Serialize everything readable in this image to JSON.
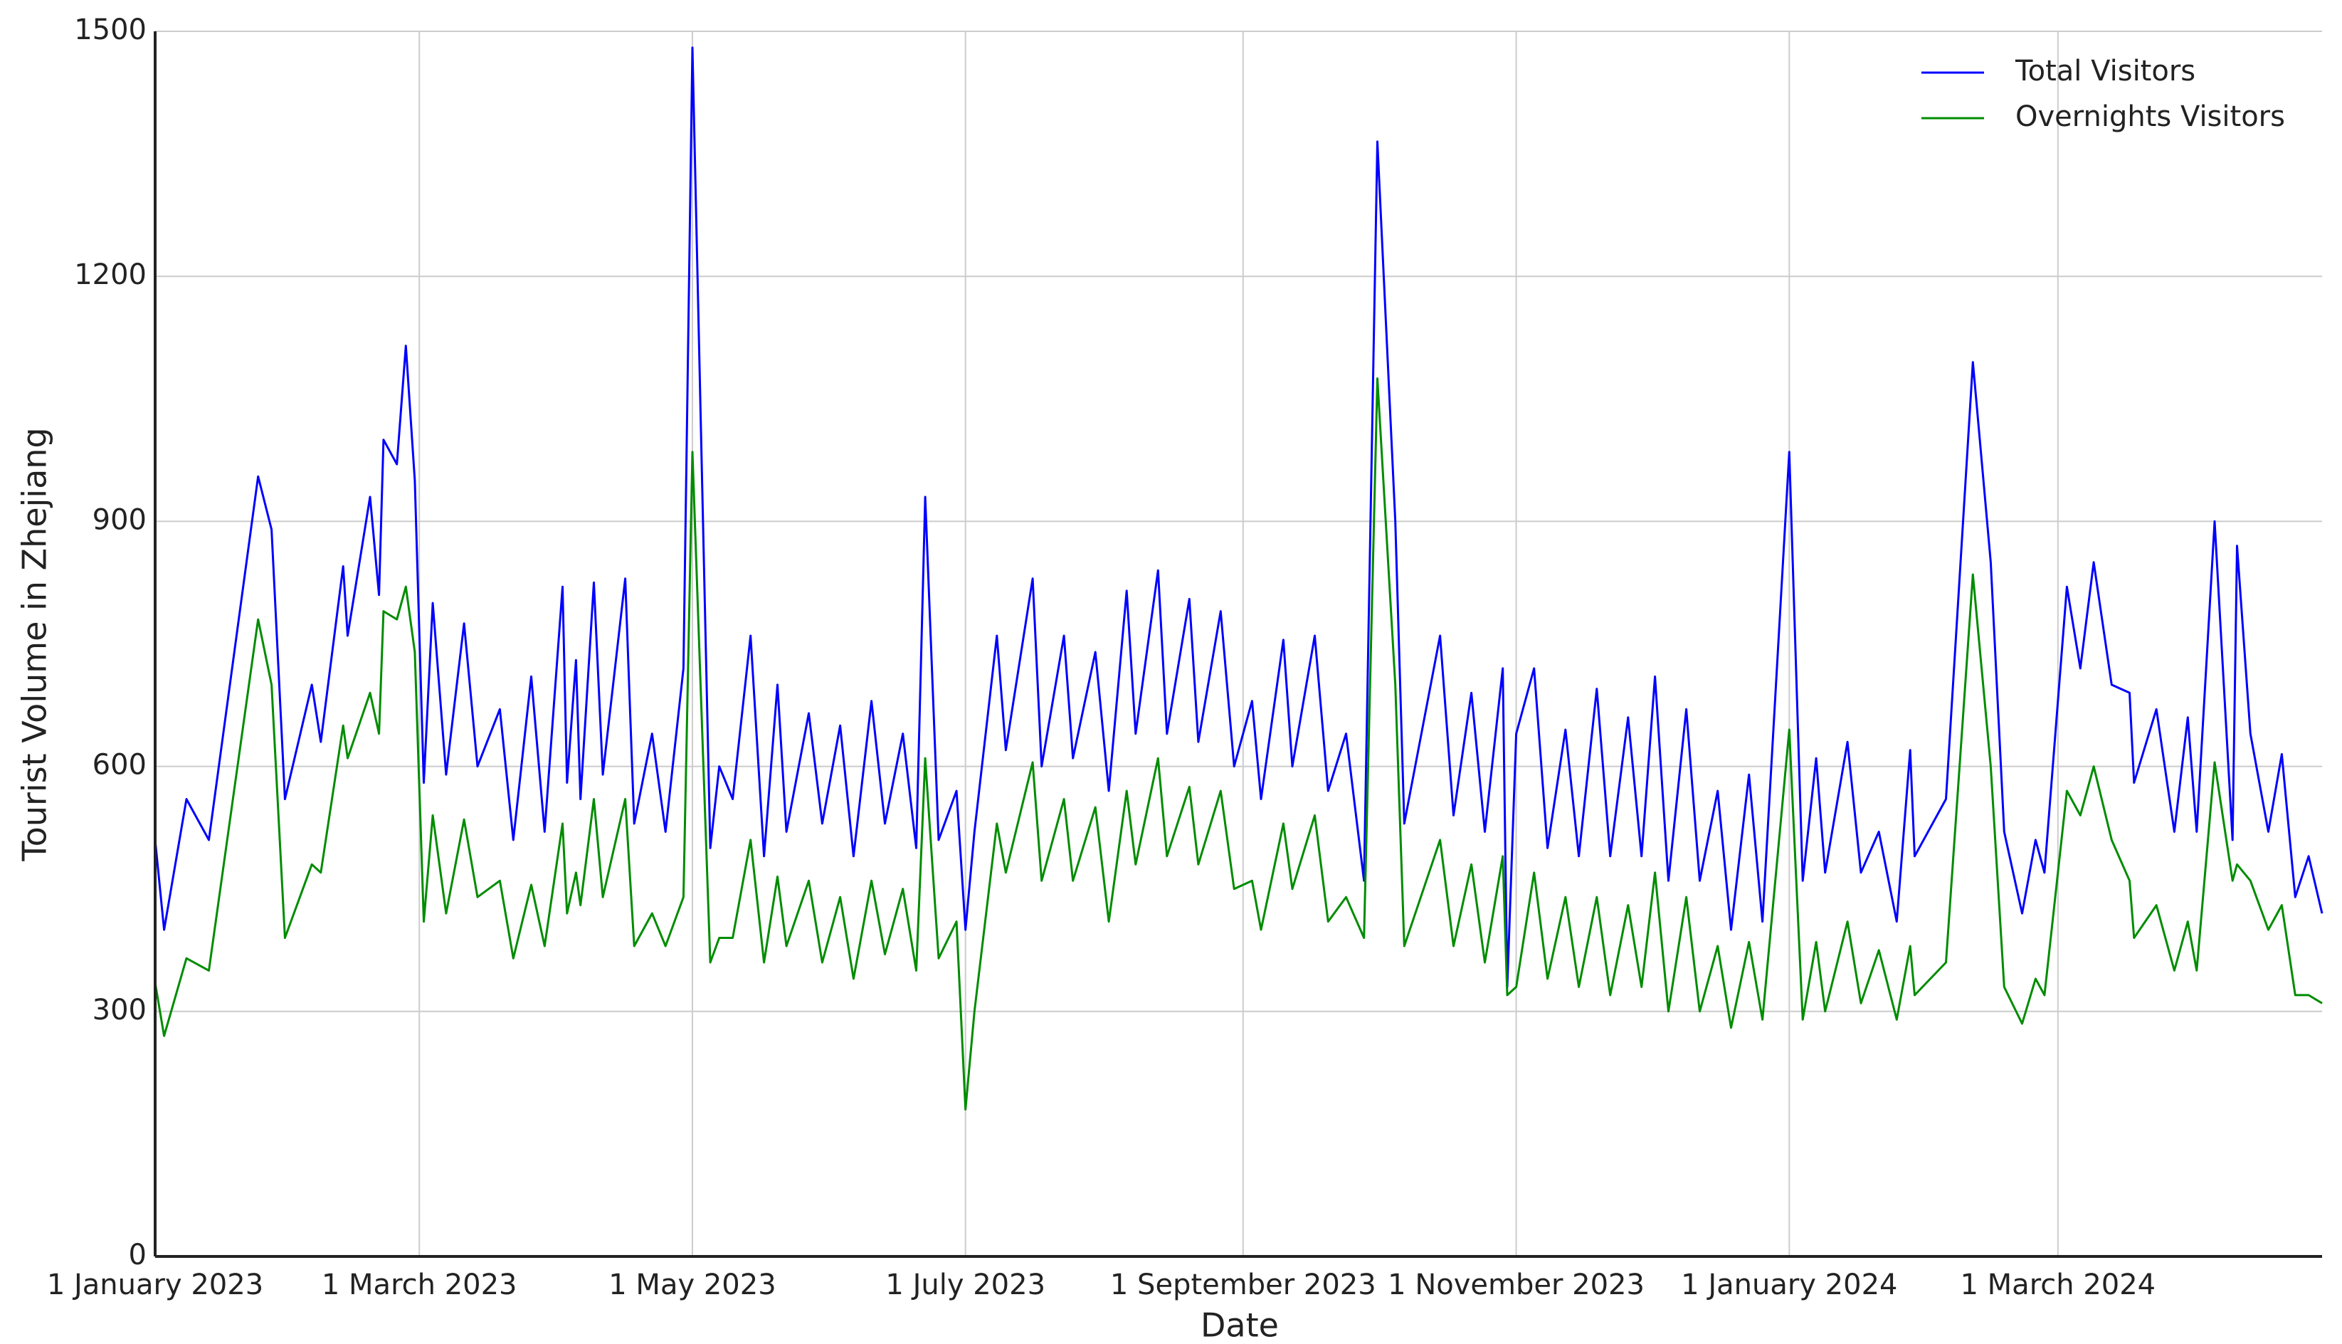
{
  "chart_data": {
    "type": "line",
    "xlabel": "Date",
    "ylabel": "Tourist Volume in Zhejiang",
    "x": [
      "2023-01-01",
      "2023-01-03",
      "2023-01-08",
      "2023-01-13",
      "2023-01-24",
      "2023-01-27",
      "2023-01-30",
      "2023-02-05",
      "2023-02-07",
      "2023-02-12",
      "2023-02-13",
      "2023-02-18",
      "2023-02-20",
      "2023-02-21",
      "2023-02-24",
      "2023-02-26",
      "2023-02-28",
      "2023-03-02",
      "2023-03-04",
      "2023-03-07",
      "2023-03-11",
      "2023-03-14",
      "2023-03-19",
      "2023-03-22",
      "2023-03-26",
      "2023-03-29",
      "2023-04-02",
      "2023-04-03",
      "2023-04-05",
      "2023-04-06",
      "2023-04-09",
      "2023-04-11",
      "2023-04-16",
      "2023-04-18",
      "2023-04-22",
      "2023-04-25",
      "2023-04-29",
      "2023-05-01",
      "2023-05-05",
      "2023-05-07",
      "2023-05-10",
      "2023-05-14",
      "2023-05-17",
      "2023-05-20",
      "2023-05-22",
      "2023-05-27",
      "2023-05-30",
      "2023-06-03",
      "2023-06-06",
      "2023-06-10",
      "2023-06-13",
      "2023-06-17",
      "2023-06-20",
      "2023-06-22",
      "2023-06-25",
      "2023-06-29",
      "2023-07-01",
      "2023-07-03",
      "2023-07-08",
      "2023-07-10",
      "2023-07-16",
      "2023-07-18",
      "2023-07-23",
      "2023-07-25",
      "2023-07-30",
      "2023-08-02",
      "2023-08-06",
      "2023-08-08",
      "2023-08-13",
      "2023-08-15",
      "2023-08-20",
      "2023-08-22",
      "2023-08-27",
      "2023-08-30",
      "2023-09-03",
      "2023-09-05",
      "2023-09-10",
      "2023-09-12",
      "2023-09-17",
      "2023-09-20",
      "2023-09-24",
      "2023-09-28",
      "2023-10-01",
      "2023-10-05",
      "2023-10-07",
      "2023-10-15",
      "2023-10-18",
      "2023-10-22",
      "2023-10-25",
      "2023-10-29",
      "2023-10-30",
      "2023-11-01",
      "2023-11-05",
      "2023-11-08",
      "2023-11-12",
      "2023-11-15",
      "2023-11-19",
      "2023-11-22",
      "2023-11-26",
      "2023-11-29",
      "2023-12-02",
      "2023-12-05",
      "2023-12-09",
      "2023-12-12",
      "2023-12-16",
      "2023-12-19",
      "2023-12-23",
      "2023-12-26",
      "2024-01-01",
      "2024-01-04",
      "2024-01-07",
      "2024-01-09",
      "2024-01-14",
      "2024-01-17",
      "2024-01-21",
      "2024-01-25",
      "2024-01-28",
      "2024-01-29",
      "2024-02-05",
      "2024-02-11",
      "2024-02-15",
      "2024-02-18",
      "2024-02-22",
      "2024-02-25",
      "2024-02-27",
      "2024-03-03",
      "2024-03-06",
      "2024-03-09",
      "2024-03-13",
      "2024-03-17",
      "2024-03-18",
      "2024-03-23",
      "2024-03-27",
      "2024-03-30",
      "2024-04-01",
      "2024-04-05",
      "2024-04-09",
      "2024-04-10",
      "2024-04-13",
      "2024-04-17",
      "2024-04-20",
      "2024-04-23",
      "2024-04-26",
      "2024-04-29"
    ],
    "series": [
      {
        "name": "Total Visitors",
        "color": "#0000ff",
        "values": [
          510,
          400,
          560,
          510,
          955,
          890,
          560,
          700,
          630,
          845,
          760,
          930,
          810,
          1000,
          970,
          1115,
          950,
          580,
          800,
          590,
          775,
          600,
          670,
          510,
          710,
          520,
          820,
          580,
          730,
          560,
          825,
          590,
          830,
          530,
          640,
          520,
          720,
          1480,
          500,
          600,
          560,
          760,
          490,
          700,
          520,
          665,
          530,
          650,
          490,
          680,
          530,
          640,
          500,
          930,
          510,
          570,
          400,
          520,
          760,
          620,
          830,
          600,
          760,
          610,
          740,
          570,
          815,
          640,
          840,
          640,
          805,
          630,
          790,
          600,
          680,
          560,
          755,
          600,
          760,
          570,
          640,
          460,
          1365,
          900,
          530,
          760,
          540,
          690,
          520,
          720,
          330,
          640,
          720,
          500,
          645,
          490,
          695,
          490,
          660,
          490,
          710,
          460,
          670,
          460,
          570,
          400,
          590,
          410,
          985,
          460,
          610,
          470,
          630,
          470,
          520,
          410,
          620,
          490,
          560,
          1095,
          850,
          520,
          420,
          510,
          470,
          820,
          720,
          850,
          700,
          690,
          580,
          670,
          520,
          660,
          520,
          900,
          510,
          870,
          640,
          520,
          615,
          440,
          490,
          420
        ]
      },
      {
        "name": "Overnights Visitors",
        "color": "#008c00",
        "values": [
          335,
          270,
          365,
          350,
          780,
          700,
          390,
          480,
          470,
          650,
          610,
          690,
          640,
          790,
          780,
          820,
          740,
          410,
          540,
          420,
          535,
          440,
          460,
          365,
          455,
          380,
          530,
          420,
          470,
          430,
          560,
          440,
          560,
          380,
          420,
          380,
          440,
          985,
          360,
          390,
          390,
          510,
          360,
          465,
          380,
          460,
          360,
          440,
          340,
          460,
          370,
          450,
          350,
          610,
          365,
          410,
          180,
          300,
          530,
          470,
          605,
          460,
          560,
          460,
          550,
          410,
          570,
          480,
          610,
          490,
          575,
          480,
          570,
          450,
          460,
          400,
          530,
          450,
          540,
          410,
          440,
          390,
          1075,
          700,
          380,
          510,
          380,
          480,
          360,
          490,
          320,
          330,
          470,
          340,
          440,
          330,
          440,
          320,
          430,
          330,
          470,
          300,
          440,
          300,
          380,
          280,
          385,
          290,
          645,
          290,
          385,
          300,
          410,
          310,
          375,
          290,
          380,
          320,
          360,
          835,
          600,
          330,
          285,
          340,
          320,
          570,
          540,
          600,
          510,
          460,
          390,
          430,
          350,
          410,
          350,
          605,
          460,
          480,
          460,
          400,
          430,
          320,
          320,
          310
        ]
      }
    ],
    "xlim": [
      "2023-01-01",
      "2024-04-29"
    ],
    "xticks": [
      {
        "value": "2023-01-01",
        "label": "1 January 2023"
      },
      {
        "value": "2023-03-01",
        "label": "1 March 2023"
      },
      {
        "value": "2023-05-01",
        "label": "1 May 2023"
      },
      {
        "value": "2023-07-01",
        "label": "1 July 2023"
      },
      {
        "value": "2023-09-01",
        "label": "1 September 2023"
      },
      {
        "value": "2023-11-01",
        "label": "1 November 2023"
      },
      {
        "value": "2024-01-01",
        "label": "1 January 2024"
      },
      {
        "value": "2024-03-01",
        "label": "1 March 2024"
      }
    ],
    "ylim": [
      0,
      1500
    ],
    "yticks": [
      0,
      300,
      600,
      900,
      1200,
      1500
    ],
    "grid": true,
    "legend": "upper right"
  }
}
